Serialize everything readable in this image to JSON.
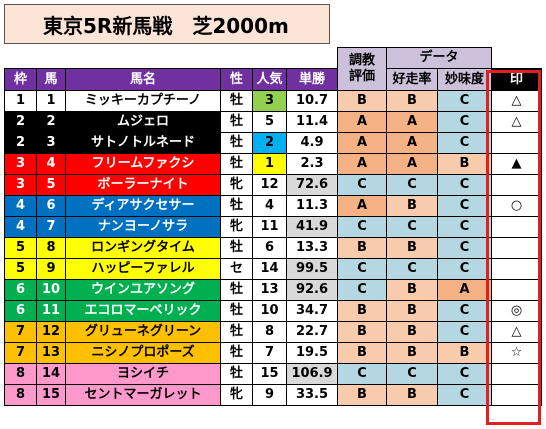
{
  "title": "東京5R新馬戦　芝2000m",
  "headers": {
    "waku": "枠",
    "uma": "馬",
    "name": "馬名",
    "sex": "性",
    "pop": "人気",
    "odds": "単勝",
    "chokyo_top": "調教",
    "chokyo_bottom": "評価",
    "data_group": "データ",
    "kousou": "好走率",
    "myomi": "妙味度",
    "mark": "印"
  },
  "colors": {
    "frame": {
      "1": [
        "#ffffff",
        "#000000"
      ],
      "2": [
        "#000000",
        "#ffffff"
      ],
      "3": [
        "#ff0000",
        "#ffffff"
      ],
      "4": [
        "#0070c0",
        "#ffffff"
      ],
      "5": [
        "#ffff00",
        "#000000"
      ],
      "6": [
        "#00b050",
        "#ffffff"
      ],
      "7": [
        "#ffc000",
        "#000000"
      ],
      "8": [
        "#ff99cc",
        "#000000"
      ]
    },
    "pop": {
      "1": "#ffff00",
      "2": "#00b0f0",
      "3": "#92d050"
    },
    "grade": {
      "A": "#f4b183",
      "B": "#f8cbad",
      "C": "#b4d7e2"
    },
    "odds_gray": "#d9d9d9"
  },
  "rows": [
    {
      "waku": "1",
      "uma": "1",
      "name": "ミッキーカプチーノ",
      "sex": "牡",
      "pop": "3",
      "odds": "10.7",
      "chokyo": "B",
      "kousou": "B",
      "myomi": "C",
      "mark": "△",
      "gray": false
    },
    {
      "waku": "2",
      "uma": "2",
      "name": "ムジェロ",
      "sex": "牡",
      "pop": "5",
      "odds": "11.4",
      "chokyo": "A",
      "kousou": "A",
      "myomi": "C",
      "mark": "△",
      "gray": false
    },
    {
      "waku": "2",
      "uma": "3",
      "name": "サトノトルネード",
      "sex": "牡",
      "pop": "2",
      "odds": "4.9",
      "chokyo": "A",
      "kousou": "A",
      "myomi": "C",
      "mark": "",
      "gray": false
    },
    {
      "waku": "3",
      "uma": "4",
      "name": "フリームファクシ",
      "sex": "牡",
      "pop": "1",
      "odds": "2.3",
      "chokyo": "A",
      "kousou": "A",
      "myomi": "B",
      "mark": "▲",
      "gray": false
    },
    {
      "waku": "3",
      "uma": "5",
      "name": "ボーラーナイト",
      "sex": "牝",
      "pop": "12",
      "odds": "72.6",
      "chokyo": "C",
      "kousou": "C",
      "myomi": "C",
      "mark": "",
      "gray": true
    },
    {
      "waku": "4",
      "uma": "6",
      "name": "ディアサクセサー",
      "sex": "牡",
      "pop": "4",
      "odds": "11.3",
      "chokyo": "A",
      "kousou": "B",
      "myomi": "C",
      "mark": "○",
      "gray": false
    },
    {
      "waku": "4",
      "uma": "7",
      "name": "ナンヨーノサラ",
      "sex": "牝",
      "pop": "11",
      "odds": "41.9",
      "chokyo": "C",
      "kousou": "C",
      "myomi": "C",
      "mark": "",
      "gray": true
    },
    {
      "waku": "5",
      "uma": "8",
      "name": "ロンギングタイム",
      "sex": "牡",
      "pop": "6",
      "odds": "13.3",
      "chokyo": "B",
      "kousou": "B",
      "myomi": "C",
      "mark": "",
      "gray": false
    },
    {
      "waku": "5",
      "uma": "9",
      "name": "ハッピーファレル",
      "sex": "セ",
      "pop": "14",
      "odds": "99.5",
      "chokyo": "C",
      "kousou": "C",
      "myomi": "C",
      "mark": "",
      "gray": true
    },
    {
      "waku": "6",
      "uma": "10",
      "name": "ウインユアソング",
      "sex": "牡",
      "pop": "13",
      "odds": "92.6",
      "chokyo": "C",
      "kousou": "B",
      "myomi": "A",
      "mark": "",
      "gray": true
    },
    {
      "waku": "6",
      "uma": "11",
      "name": "エコロマーベリック",
      "sex": "牡",
      "pop": "10",
      "odds": "34.7",
      "chokyo": "B",
      "kousou": "B",
      "myomi": "C",
      "mark": "◎",
      "gray": false
    },
    {
      "waku": "7",
      "uma": "12",
      "name": "グリューネグリーン",
      "sex": "牡",
      "pop": "8",
      "odds": "22.7",
      "chokyo": "B",
      "kousou": "B",
      "myomi": "C",
      "mark": "△",
      "gray": false
    },
    {
      "waku": "7",
      "uma": "13",
      "name": "ニシノプロポーズ",
      "sex": "牡",
      "pop": "7",
      "odds": "19.5",
      "chokyo": "B",
      "kousou": "B",
      "myomi": "B",
      "mark": "☆",
      "gray": false
    },
    {
      "waku": "8",
      "uma": "14",
      "name": "ヨシイチ",
      "sex": "牡",
      "pop": "15",
      "odds": "106.9",
      "chokyo": "C",
      "kousou": "C",
      "myomi": "C",
      "mark": "",
      "gray": true
    },
    {
      "waku": "8",
      "uma": "15",
      "name": "セントマーガレット",
      "sex": "牝",
      "pop": "9",
      "odds": "33.5",
      "chokyo": "B",
      "kousou": "B",
      "myomi": "C",
      "mark": "",
      "gray": false
    }
  ]
}
